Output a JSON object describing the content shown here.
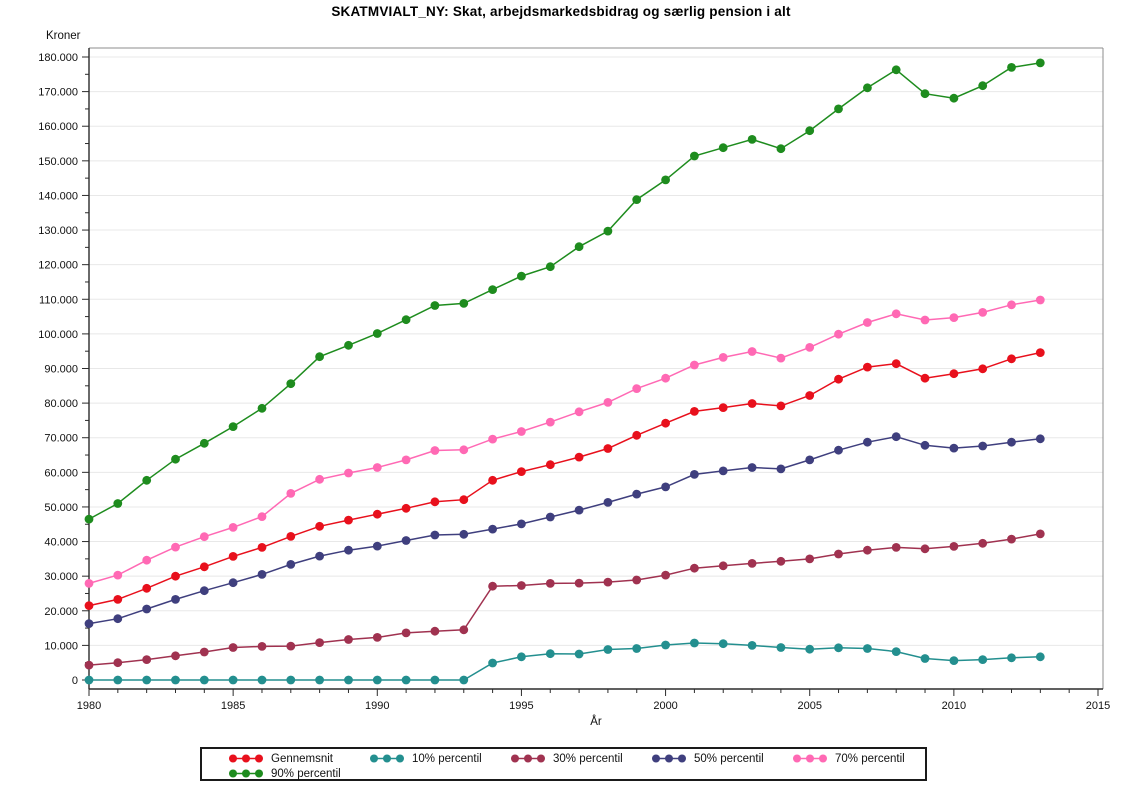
{
  "title": "SKATMVIALT_NY:  Skat, arbejdsmarkedsbidrag og særlig pension i alt",
  "y_axis": {
    "label": "Kroner"
  },
  "x_axis": {
    "label": "År"
  },
  "legend": {
    "items": [
      "Gennemsnit",
      "10% percentil",
      "30% percentil",
      "50% percentil",
      "70% percentil",
      "90% percentil"
    ]
  },
  "chart_data": {
    "type": "line",
    "title": "SKATMVIALT_NY:  Skat, arbejdsmarkedsbidrag og særlig pension i alt",
    "xlabel": "År",
    "ylabel": "Kroner",
    "xlim": [
      1980,
      2015
    ],
    "ylim": [
      0,
      180000
    ],
    "y_major_step": 10000,
    "y_minor_step": 5000,
    "x_label_step": 5,
    "x_minor_step": 1,
    "grid": "horizontal-major",
    "legend_position": "bottom",
    "x": [
      1980,
      1981,
      1982,
      1983,
      1984,
      1985,
      1986,
      1987,
      1988,
      1989,
      1990,
      1991,
      1992,
      1993,
      1994,
      1995,
      1996,
      1997,
      1998,
      1999,
      2000,
      2001,
      2002,
      2003,
      2004,
      2005,
      2006,
      2007,
      2008,
      2009,
      2010,
      2011,
      2012,
      2013
    ],
    "series": [
      {
        "name": "Gennemsnit",
        "color": "#E8101C",
        "values": [
          21500,
          23300,
          26500,
          30000,
          32700,
          35700,
          38300,
          41500,
          44400,
          46200,
          47900,
          49600,
          51500,
          52100,
          57700,
          60200,
          62200,
          64400,
          66900,
          70700,
          74200,
          77600,
          78700,
          79900,
          79200,
          82200,
          86900,
          90400,
          91400,
          87200,
          88500,
          89900,
          92800,
          94600
        ]
      },
      {
        "name": "10% percentil",
        "color": "#238F8F",
        "values": [
          0,
          0,
          0,
          0,
          0,
          0,
          0,
          0,
          0,
          0,
          0,
          0,
          0,
          0,
          4900,
          6700,
          7600,
          7500,
          8800,
          9100,
          10100,
          10700,
          10500,
          10000,
          9400,
          8900,
          9300,
          9100,
          8200,
          6200,
          5600,
          5900,
          6400,
          6700
        ]
      },
      {
        "name": "30% percentil",
        "color": "#A03250",
        "values": [
          4300,
          5000,
          5900,
          7000,
          8100,
          9400,
          9700,
          9800,
          10800,
          11700,
          12300,
          13600,
          14100,
          14500,
          27100,
          27300,
          27900,
          28000,
          28300,
          28900,
          30300,
          32300,
          33000,
          33700,
          34300,
          35000,
          36400,
          37500,
          38300,
          37900,
          38600,
          39500,
          40700,
          42200
        ]
      },
      {
        "name": "50% percentil",
        "color": "#3F3F7E",
        "values": [
          16300,
          17700,
          20500,
          23300,
          25800,
          28100,
          30500,
          33400,
          35800,
          37500,
          38700,
          40300,
          41900,
          42100,
          43600,
          45100,
          47100,
          49100,
          51300,
          53700,
          55800,
          59400,
          60400,
          61400,
          61000,
          63600,
          66400,
          68700,
          70300,
          67800,
          67000,
          67600,
          68700,
          69700
        ]
      },
      {
        "name": "70% percentil",
        "color": "#FF69B4",
        "values": [
          27900,
          30300,
          34600,
          38400,
          41400,
          44100,
          47200,
          53900,
          58000,
          59800,
          61400,
          63600,
          66300,
          66500,
          69600,
          71800,
          74500,
          77500,
          80200,
          84200,
          87200,
          91000,
          93200,
          94900,
          93000,
          96100,
          99900,
          103300,
          105800,
          104000,
          104700,
          106200,
          108400,
          109800
        ]
      },
      {
        "name": "90% percentil",
        "color": "#1E8C1E",
        "values": [
          46500,
          51000,
          57700,
          63800,
          68400,
          73200,
          78500,
          85600,
          93400,
          96700,
          100100,
          104100,
          108200,
          108800,
          112800,
          116700,
          119400,
          125200,
          129700,
          138800,
          144500,
          151400,
          153800,
          156200,
          153500,
          158700,
          165000,
          171100,
          176300,
          169400,
          168100,
          171700,
          177000,
          178300
        ]
      }
    ]
  }
}
